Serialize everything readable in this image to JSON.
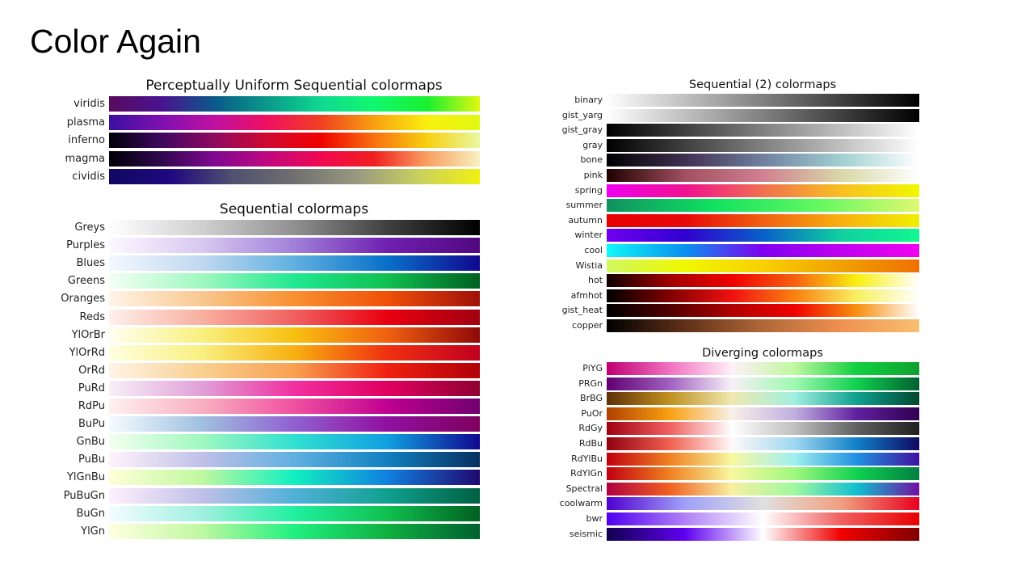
{
  "slide": {
    "title": "Color Again"
  },
  "groups": [
    {
      "id": "perceptual",
      "title": "Perceptually Uniform Sequential colormaps",
      "colormaps": [
        {
          "name": "viridis",
          "colors": [
            "#5a0a5e",
            "#4a1390",
            "#0a5a8a",
            "#0a9a8a",
            "#10d890",
            "#12f870",
            "#18f030",
            "#e0f810"
          ]
        },
        {
          "name": "plasma",
          "colors": [
            "#3a10a0",
            "#8010b0",
            "#c010a0",
            "#f01060",
            "#f04020",
            "#f8a010",
            "#f8f010",
            "#e0f810"
          ]
        },
        {
          "name": "inferno",
          "colors": [
            "#000008",
            "#400860",
            "#900860",
            "#d00830",
            "#f00000",
            "#f87010",
            "#f8d010",
            "#e8f8a0"
          ]
        },
        {
          "name": "magma",
          "colors": [
            "#000008",
            "#300850",
            "#800890",
            "#c00880",
            "#f00850",
            "#f02020",
            "#f8a060",
            "#f8f0c0"
          ]
        },
        {
          "name": "cividis",
          "colors": [
            "#100860",
            "#200880",
            "#505070",
            "#707070",
            "#989880",
            "#c8d060",
            "#f0f010"
          ]
        }
      ]
    },
    {
      "id": "sequential",
      "title": "Sequential colormaps",
      "colormaps": [
        {
          "name": "Greys",
          "colors": [
            "#ffffff",
            "#d0d0d0",
            "#909090",
            "#404040",
            "#000000"
          ]
        },
        {
          "name": "Purples",
          "colors": [
            "#fcf8ff",
            "#d8c8f0",
            "#a080d8",
            "#7020b0",
            "#500880"
          ]
        },
        {
          "name": "Blues",
          "colors": [
            "#f4f8ff",
            "#c0d8f0",
            "#60b0e0",
            "#0870c8",
            "#100890"
          ]
        },
        {
          "name": "Greens",
          "colors": [
            "#f4fff4",
            "#a0f8c0",
            "#20e890",
            "#10c050",
            "#006020"
          ]
        },
        {
          "name": "Oranges",
          "colors": [
            "#fff4e8",
            "#f8c890",
            "#f89030",
            "#f05008",
            "#a01008"
          ]
        },
        {
          "name": "Reds",
          "colors": [
            "#fff0ec",
            "#f8b0a0",
            "#f06060",
            "#e80010",
            "#a00010"
          ]
        },
        {
          "name": "YlOrBr",
          "colors": [
            "#fffff0",
            "#f8f080",
            "#f8c010",
            "#f06010",
            "#900808"
          ]
        },
        {
          "name": "YlOrRd",
          "colors": [
            "#ffffe0",
            "#f8f080",
            "#f8b010",
            "#f03010",
            "#c00020"
          ]
        },
        {
          "name": "OrRd",
          "colors": [
            "#fff4e8",
            "#f8d090",
            "#f8a050",
            "#f02010",
            "#b00008"
          ]
        },
        {
          "name": "PuRd",
          "colors": [
            "#f8f0f8",
            "#e0a0d8",
            "#f030a0",
            "#e00060",
            "#900030"
          ]
        },
        {
          "name": "RdPu",
          "colors": [
            "#fff0f0",
            "#f8b0c0",
            "#f050a0",
            "#c00090",
            "#700070"
          ]
        },
        {
          "name": "BuPu",
          "colors": [
            "#f4fcff",
            "#a0c0e0",
            "#9060d0",
            "#9010a0",
            "#800060"
          ]
        },
        {
          "name": "GnBu",
          "colors": [
            "#f4fff0",
            "#a0f8c0",
            "#30e0d0",
            "#10a0e0",
            "#100890"
          ]
        },
        {
          "name": "PuBu",
          "colors": [
            "#fff4fc",
            "#c0c0e8",
            "#60b0e0",
            "#1080c0",
            "#083060"
          ]
        },
        {
          "name": "YlGnBu",
          "colors": [
            "#ffffd8",
            "#c0f8a0",
            "#10f0c0",
            "#1080e0",
            "#200870"
          ]
        },
        {
          "name": "PuBuGn",
          "colors": [
            "#fff0fc",
            "#c0c0e8",
            "#50b0d8",
            "#10a090",
            "#006040"
          ]
        },
        {
          "name": "BuGn",
          "colors": [
            "#f4fcff",
            "#a0f0e0",
            "#20f0a0",
            "#10c050",
            "#006020"
          ]
        },
        {
          "name": "YlGn",
          "colors": [
            "#ffffe0",
            "#c0f8a0",
            "#20f080",
            "#10b040",
            "#006030"
          ]
        }
      ]
    },
    {
      "id": "sequential2",
      "title": "Sequential (2) colormaps",
      "colormaps": [
        {
          "name": "binary",
          "colors": [
            "#ffffff",
            "#808080",
            "#000000"
          ]
        },
        {
          "name": "gist_yarg",
          "colors": [
            "#ffffff",
            "#808080",
            "#000000"
          ]
        },
        {
          "name": "gist_gray",
          "colors": [
            "#000000",
            "#808080",
            "#ffffff"
          ]
        },
        {
          "name": "gray",
          "colors": [
            "#000000",
            "#808080",
            "#ffffff"
          ]
        },
        {
          "name": "bone",
          "colors": [
            "#000000",
            "#403050",
            "#7080a0",
            "#a0d0d0",
            "#ffffff"
          ]
        },
        {
          "name": "pink",
          "colors": [
            "#200000",
            "#a05060",
            "#d08090",
            "#d8d8a8",
            "#ffffff"
          ]
        },
        {
          "name": "spring",
          "colors": [
            "#f000f0",
            "#f01090",
            "#f07050",
            "#f8c020",
            "#f0f800"
          ]
        },
        {
          "name": "summer",
          "colors": [
            "#109060",
            "#10e060",
            "#60f860",
            "#e0f870"
          ]
        },
        {
          "name": "autumn",
          "colors": [
            "#e80000",
            "#e80808",
            "#f06010",
            "#f8b010",
            "#f0f000"
          ]
        },
        {
          "name": "winter",
          "colors": [
            "#7000f0",
            "#3000d0",
            "#0860c8",
            "#10d0a0",
            "#10f890"
          ]
        },
        {
          "name": "cool",
          "colors": [
            "#10f8f8",
            "#0890f0",
            "#8000f0",
            "#c000f0",
            "#f000f0"
          ]
        },
        {
          "name": "Wistia",
          "colors": [
            "#d0f860",
            "#f0f800",
            "#f8d000",
            "#f0a000",
            "#f07000"
          ]
        },
        {
          "name": "hot",
          "colors": [
            "#100000",
            "#a00000",
            "#f00000",
            "#f86010",
            "#f8f010",
            "#ffffff"
          ]
        },
        {
          "name": "afmhot",
          "colors": [
            "#000000",
            "#800000",
            "#f01010",
            "#f88010",
            "#f8f060",
            "#ffffff"
          ]
        },
        {
          "name": "gist_heat",
          "colors": [
            "#000000",
            "#500000",
            "#b00000",
            "#f00000",
            "#f89010",
            "#ffffff"
          ]
        },
        {
          "name": "copper",
          "colors": [
            "#000000",
            "#603018",
            "#b06838",
            "#f09050",
            "#f8c070"
          ]
        }
      ]
    },
    {
      "id": "diverging",
      "title": "Diverging colormaps",
      "colormaps": [
        {
          "name": "PiYG",
          "colors": [
            "#c00070",
            "#f070c0",
            "#fff0f8",
            "#c0f8a0",
            "#10d040",
            "#10a030"
          ]
        },
        {
          "name": "PRGn",
          "colors": [
            "#600070",
            "#a060c0",
            "#f8f0f8",
            "#a0f8b0",
            "#10d050",
            "#006030"
          ]
        },
        {
          "name": "BrBG",
          "colors": [
            "#603008",
            "#c09020",
            "#f0e8b0",
            "#a0f0e0",
            "#10a090",
            "#004830"
          ]
        },
        {
          "name": "PuOr",
          "colors": [
            "#b04000",
            "#f8a010",
            "#f8f0e8",
            "#c0b0e0",
            "#6020a0",
            "#300050"
          ]
        },
        {
          "name": "RdGy",
          "colors": [
            "#a00010",
            "#f06060",
            "#ffffff",
            "#c0c0c0",
            "#606060",
            "#202020"
          ]
        },
        {
          "name": "RdBu",
          "colors": [
            "#900010",
            "#f06050",
            "#fff8f8",
            "#a0d8f0",
            "#1080c8",
            "#100860"
          ]
        },
        {
          "name": "RdYlBu",
          "colors": [
            "#c00010",
            "#f08020",
            "#f8f8a0",
            "#a0f0f0",
            "#2090e0",
            "#4010a0"
          ]
        },
        {
          "name": "RdYlGn",
          "colors": [
            "#c00010",
            "#f08020",
            "#f8f8a0",
            "#a0f880",
            "#10d050",
            "#008040"
          ]
        },
        {
          "name": "Spectral",
          "colors": [
            "#b00040",
            "#f06020",
            "#f8f0a0",
            "#a0f8a0",
            "#10c0d0",
            "#7010a0"
          ]
        },
        {
          "name": "coolwarm",
          "colors": [
            "#5000d0",
            "#a0a0f8",
            "#e0e0e0",
            "#f0a080",
            "#e80020"
          ]
        },
        {
          "name": "bwr",
          "colors": [
            "#5000f0",
            "#b080f8",
            "#ffffff",
            "#f06060",
            "#e80000"
          ]
        },
        {
          "name": "seismic",
          "colors": [
            "#100050",
            "#6000f0",
            "#ffffff",
            "#f00000",
            "#800000"
          ]
        }
      ]
    }
  ]
}
